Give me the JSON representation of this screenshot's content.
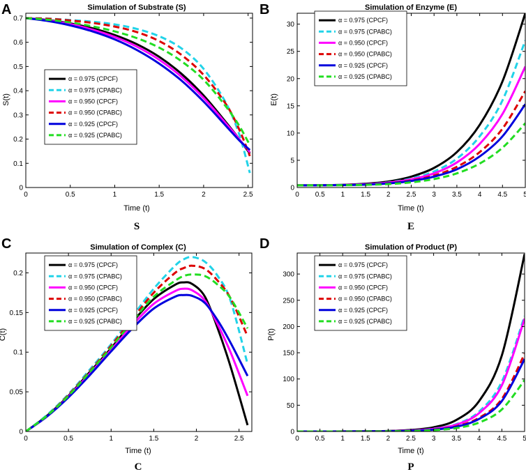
{
  "series_styles": [
    {
      "color": "#000000",
      "dash": "solid"
    },
    {
      "color": "#22d3e8",
      "dash": "dashed"
    },
    {
      "color": "#ff00ff",
      "dash": "solid"
    },
    {
      "color": "#dd0000",
      "dash": "dashed"
    },
    {
      "color": "#0000dd",
      "dash": "solid"
    },
    {
      "color": "#22dd22",
      "dash": "dashed"
    }
  ],
  "chart_data": [
    {
      "type": "line",
      "panel_letter": "A",
      "caption": "S",
      "title": "Simulation of Substrate (S)",
      "xlabel": "Time (t)",
      "ylabel": "S(t)",
      "xlim": [
        0,
        2.55
      ],
      "ylim": [
        0,
        0.72
      ],
      "xticks": [
        0,
        0.5,
        1,
        1.5,
        2,
        2.5
      ],
      "xtick_labels": [
        "0",
        "0.5",
        "1",
        "1.5",
        "2",
        "2.5"
      ],
      "yticks": [
        0,
        0.1,
        0.2,
        0.3,
        0.4,
        0.5,
        0.6,
        0.7
      ],
      "ytick_labels": [
        "0",
        "0.1",
        "0.2",
        "0.3",
        "0.4",
        "0.5",
        "0.6",
        "0.7"
      ],
      "legend_placement": "middle-left",
      "x": [
        0,
        0.25,
        0.5,
        0.75,
        1,
        1.25,
        1.5,
        1.75,
        2,
        2.25,
        2.4,
        2.52
      ],
      "series": [
        {
          "name": "α = 0.975 (CPCF)",
          "values": [
            0.7,
            0.692,
            0.678,
            0.658,
            0.63,
            0.592,
            0.54,
            0.47,
            0.38,
            0.27,
            0.2,
            0.14
          ]
        },
        {
          "name": "α = 0.975 (CPABC)",
          "values": [
            0.7,
            0.698,
            0.692,
            0.685,
            0.674,
            0.655,
            0.625,
            0.575,
            0.49,
            0.35,
            0.22,
            0.06
          ]
        },
        {
          "name": "α = 0.950 (CPCF)",
          "values": [
            0.7,
            0.69,
            0.675,
            0.652,
            0.622,
            0.582,
            0.528,
            0.458,
            0.37,
            0.265,
            0.2,
            0.145
          ]
        },
        {
          "name": "α = 0.950 (CPABC)",
          "values": [
            0.7,
            0.697,
            0.69,
            0.68,
            0.665,
            0.642,
            0.605,
            0.548,
            0.465,
            0.345,
            0.24,
            0.13
          ]
        },
        {
          "name": "α = 0.925 (CPCF)",
          "values": [
            0.7,
            0.688,
            0.67,
            0.645,
            0.612,
            0.568,
            0.512,
            0.442,
            0.355,
            0.255,
            0.195,
            0.155
          ]
        },
        {
          "name": "α = 0.925 (CPABC)",
          "values": [
            0.7,
            0.693,
            0.682,
            0.666,
            0.645,
            0.617,
            0.578,
            0.522,
            0.445,
            0.335,
            0.255,
            0.175
          ]
        }
      ]
    },
    {
      "type": "line",
      "panel_letter": "B",
      "caption": "E",
      "title": "Simulation of Enzyme (E)",
      "xlabel": "Time (t)",
      "ylabel": "E(t)",
      "xlim": [
        0,
        5
      ],
      "ylim": [
        0,
        32
      ],
      "xticks": [
        0,
        0.5,
        1,
        1.5,
        2,
        2.5,
        3,
        3.5,
        4,
        4.5,
        5
      ],
      "xtick_labels": [
        "0",
        "0.5",
        "1",
        "1.5",
        "2",
        "2.5",
        "3",
        "3.5",
        "4",
        "4.5",
        "5"
      ],
      "yticks": [
        0,
        5,
        10,
        15,
        20,
        25,
        30
      ],
      "ytick_labels": [
        "0",
        "5",
        "10",
        "15",
        "20",
        "25",
        "30"
      ],
      "legend_placement": "top-left",
      "x": [
        0,
        0.5,
        1,
        1.5,
        2,
        2.5,
        3,
        3.5,
        4,
        4.5,
        5
      ],
      "series": [
        {
          "name": "α = 0.975 (CPCF)",
          "values": [
            0.4,
            0.42,
            0.5,
            0.7,
            1.1,
            2.0,
            3.6,
            6.5,
            11.5,
            19.5,
            32
          ]
        },
        {
          "name": "α = 0.975 (CPABC)",
          "values": [
            0.4,
            0.41,
            0.47,
            0.62,
            0.95,
            1.65,
            2.95,
            5.3,
            9.4,
            16,
            27
          ]
        },
        {
          "name": "α = 0.950 (CPCF)",
          "values": [
            0.4,
            0.41,
            0.46,
            0.6,
            0.9,
            1.5,
            2.6,
            4.6,
            8.0,
            13.5,
            22.2
          ]
        },
        {
          "name": "α = 0.950 (CPABC)",
          "values": [
            0.4,
            0.41,
            0.45,
            0.56,
            0.8,
            1.3,
            2.2,
            3.8,
            6.5,
            10.8,
            17.7
          ]
        },
        {
          "name": "α = 0.925 (CPCF)",
          "values": [
            0.4,
            0.41,
            0.44,
            0.53,
            0.75,
            1.2,
            2.0,
            3.35,
            5.7,
            9.4,
            15.3
          ]
        },
        {
          "name": "α = 0.925 (CPABC)",
          "values": [
            0.4,
            0.4,
            0.42,
            0.48,
            0.62,
            0.95,
            1.55,
            2.6,
            4.4,
            7.3,
            11.8
          ]
        }
      ]
    },
    {
      "type": "line",
      "panel_letter": "C",
      "caption": "C",
      "title": "Simulation of Complex (C)",
      "xlabel": "Time (t)",
      "ylabel": "C(t)",
      "xlim": [
        0,
        2.65
      ],
      "ylim": [
        0,
        0.225
      ],
      "xticks": [
        0,
        0.5,
        1,
        1.5,
        2,
        2.5
      ],
      "xtick_labels": [
        "0",
        "0.5",
        "1",
        "1.5",
        "2",
        "2.5"
      ],
      "yticks": [
        0,
        0.05,
        0.1,
        0.15,
        0.2
      ],
      "ytick_labels": [
        "0",
        "0.05",
        "0.1",
        "0.15",
        "0.2"
      ],
      "legend_placement": "top-left",
      "x": [
        0,
        0.25,
        0.5,
        0.75,
        1,
        1.25,
        1.5,
        1.75,
        1.85,
        1.95,
        2.1,
        2.25,
        2.4,
        2.6
      ],
      "series": [
        {
          "name": "α = 0.975 (CPCF)",
          "values": [
            0,
            0.02,
            0.045,
            0.075,
            0.105,
            0.138,
            0.167,
            0.185,
            0.188,
            0.186,
            0.17,
            0.13,
            0.082,
            0.008
          ]
        },
        {
          "name": "α = 0.975 (CPABC)",
          "values": [
            0,
            0.021,
            0.047,
            0.078,
            0.11,
            0.145,
            0.18,
            0.209,
            0.217,
            0.22,
            0.214,
            0.196,
            0.165,
            0.085
          ]
        },
        {
          "name": "α = 0.950 (CPCF)",
          "values": [
            0,
            0.019,
            0.044,
            0.073,
            0.103,
            0.134,
            0.161,
            0.177,
            0.18,
            0.178,
            0.165,
            0.135,
            0.1,
            0.045
          ]
        },
        {
          "name": "α = 0.950 (CPABC)",
          "values": [
            0,
            0.02,
            0.046,
            0.076,
            0.108,
            0.142,
            0.175,
            0.2,
            0.206,
            0.209,
            0.205,
            0.19,
            0.168,
            0.12
          ]
        },
        {
          "name": "α = 0.925 (CPCF)",
          "values": [
            0,
            0.019,
            0.043,
            0.071,
            0.101,
            0.13,
            0.155,
            0.17,
            0.172,
            0.171,
            0.162,
            0.14,
            0.112,
            0.07
          ]
        },
        {
          "name": "α = 0.925 (CPABC)",
          "values": [
            0,
            0.02,
            0.045,
            0.075,
            0.106,
            0.139,
            0.17,
            0.19,
            0.196,
            0.198,
            0.196,
            0.185,
            0.168,
            0.13
          ]
        }
      ]
    },
    {
      "type": "line",
      "panel_letter": "D",
      "caption": "P",
      "title": "Simulation of Product (P)",
      "xlabel": "Time (t)",
      "ylabel": "P(t)",
      "xlim": [
        0,
        5
      ],
      "ylim": [
        0,
        340
      ],
      "xticks": [
        0,
        0.5,
        1,
        1.5,
        2,
        2.5,
        3,
        3.5,
        4,
        4.5,
        5
      ],
      "xtick_labels": [
        "0",
        "0.5",
        "1",
        "1.5",
        "2",
        "2.5",
        "3",
        "3.5",
        "4",
        "4.5",
        "5"
      ],
      "yticks": [
        0,
        50,
        100,
        150,
        200,
        250,
        300
      ],
      "ytick_labels": [
        "0",
        "50",
        "100",
        "150",
        "200",
        "250",
        "300"
      ],
      "legend_placement": "top-left",
      "x": [
        0,
        0.5,
        1,
        1.5,
        2,
        2.5,
        3,
        3.5,
        4,
        4.5,
        5
      ],
      "series": [
        {
          "name": "α = 0.975 (CPCF)",
          "values": [
            0,
            0,
            0.1,
            0.3,
            1,
            3,
            8,
            22,
            58,
            145,
            338
          ]
        },
        {
          "name": "α = 0.975 (CPABC)",
          "values": [
            0,
            0,
            0.1,
            0.2,
            0.7,
            2,
            5.5,
            14,
            38,
            95,
            220
          ]
        },
        {
          "name": "α = 0.950 (CPCF)",
          "values": [
            0,
            0,
            0.1,
            0.2,
            0.7,
            2,
            5,
            13,
            35,
            88,
            215
          ]
        },
        {
          "name": "α = 0.950 (CPABC)",
          "values": [
            0,
            0,
            0.05,
            0.15,
            0.5,
            1.4,
            3.8,
            10,
            26,
            62,
            148
          ]
        },
        {
          "name": "α = 0.925 (CPCF)",
          "values": [
            0,
            0,
            0.05,
            0.15,
            0.5,
            1.3,
            3.5,
            9,
            24,
            58,
            138
          ]
        },
        {
          "name": "α = 0.925 (CPABC)",
          "values": [
            0,
            0,
            0.05,
            0.1,
            0.3,
            0.9,
            2.5,
            6.5,
            17,
            42,
            98
          ]
        }
      ]
    }
  ]
}
